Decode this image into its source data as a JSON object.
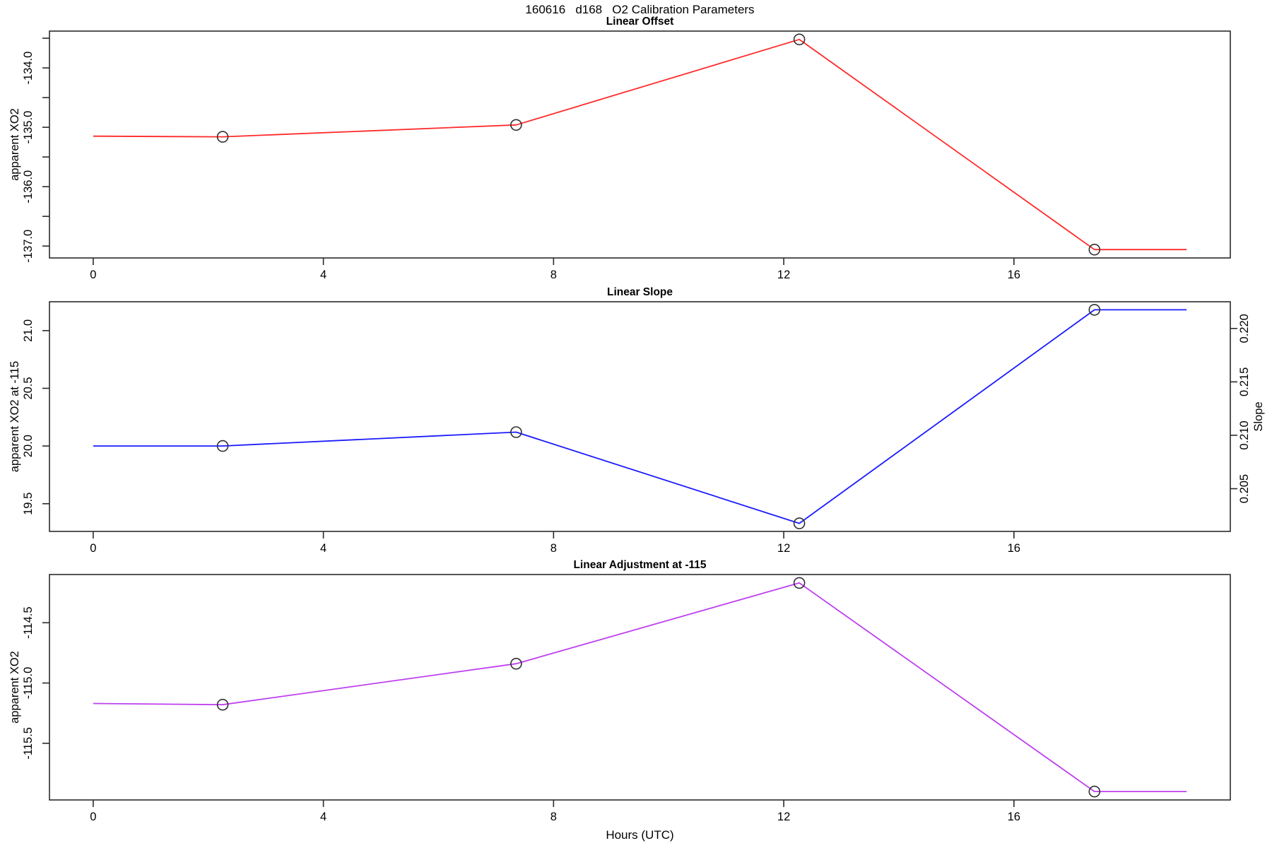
{
  "page": {
    "title": "160616   d168   O2 Calibration Parameters",
    "xlabel": "Hours (UTC)"
  },
  "axes": {
    "xlim": [
      -0.76,
      19.76
    ],
    "x_ticks": [
      {
        "v": 0,
        "label": "0"
      },
      {
        "v": 4,
        "label": "4"
      },
      {
        "v": 8,
        "label": "8"
      },
      {
        "v": 12,
        "label": "12"
      },
      {
        "v": 16,
        "label": "16"
      }
    ]
  },
  "style": {
    "box_color": "#2b2b2b",
    "marker_color": "#303030",
    "text_color": "#000000"
  },
  "chart_data": [
    {
      "type": "line",
      "title": "Linear Offset",
      "ylabel": "apparent XO2",
      "color": "#ff2a2a",
      "ylim": [
        -137.2,
        -133.38
      ],
      "yticks_major": [
        {
          "v": -134.0,
          "label": "-134.0"
        },
        {
          "v": -135.0,
          "label": "-135.0"
        },
        {
          "v": -136.0,
          "label": "-136.0"
        },
        {
          "v": -137.0,
          "label": "-137.0"
        }
      ],
      "yticks_minor": [
        -133.5,
        -134.5,
        -135.5,
        -136.5
      ],
      "x": [
        0,
        2.25,
        7.35,
        12.27,
        17.4,
        19.0
      ],
      "y": [
        -135.15,
        -135.16,
        -134.96,
        -133.52,
        -137.06,
        -137.06
      ],
      "marker_indices": [
        1,
        2,
        3,
        4
      ]
    },
    {
      "type": "line",
      "title": "Linear Slope",
      "ylabel": "apparent XO2 at -115",
      "color": "#1b1bff",
      "ylim": [
        19.26,
        21.25
      ],
      "yticks_major": [
        {
          "v": 19.5,
          "label": "19.5"
        },
        {
          "v": 20.0,
          "label": "20.0"
        },
        {
          "v": 20.5,
          "label": "20.5"
        },
        {
          "v": 21.0,
          "label": "21.0"
        }
      ],
      "yticks_minor": [],
      "right_axis": {
        "label": "Slope",
        "lim": [
          0.201,
          0.2225
        ],
        "ticks": [
          {
            "v": 0.205,
            "label": "0.205"
          },
          {
            "v": 0.21,
            "label": "0.210"
          },
          {
            "v": 0.215,
            "label": "0.215"
          },
          {
            "v": 0.22,
            "label": "0.220"
          }
        ]
      },
      "x": [
        0,
        2.25,
        7.35,
        12.27,
        17.4,
        19.0
      ],
      "y": [
        20.0,
        20.0,
        20.12,
        19.33,
        21.18,
        21.18
      ],
      "marker_indices": [
        1,
        2,
        3,
        4
      ]
    },
    {
      "type": "line",
      "title": "Linear Adjustment at -115",
      "ylabel": "apparent XO2",
      "color": "#be3fef",
      "ylim": [
        -115.97,
        -114.1
      ],
      "yticks_major": [
        {
          "v": -114.5,
          "label": "-114.5"
        },
        {
          "v": -115.0,
          "label": "-115.0"
        },
        {
          "v": -115.5,
          "label": "-115.5"
        }
      ],
      "yticks_minor": [],
      "x": [
        0,
        2.25,
        7.35,
        12.27,
        17.4,
        19.0
      ],
      "y": [
        -115.17,
        -115.18,
        -114.84,
        -114.17,
        -115.9,
        -115.9
      ],
      "marker_indices": [
        1,
        2,
        3,
        4
      ]
    }
  ]
}
